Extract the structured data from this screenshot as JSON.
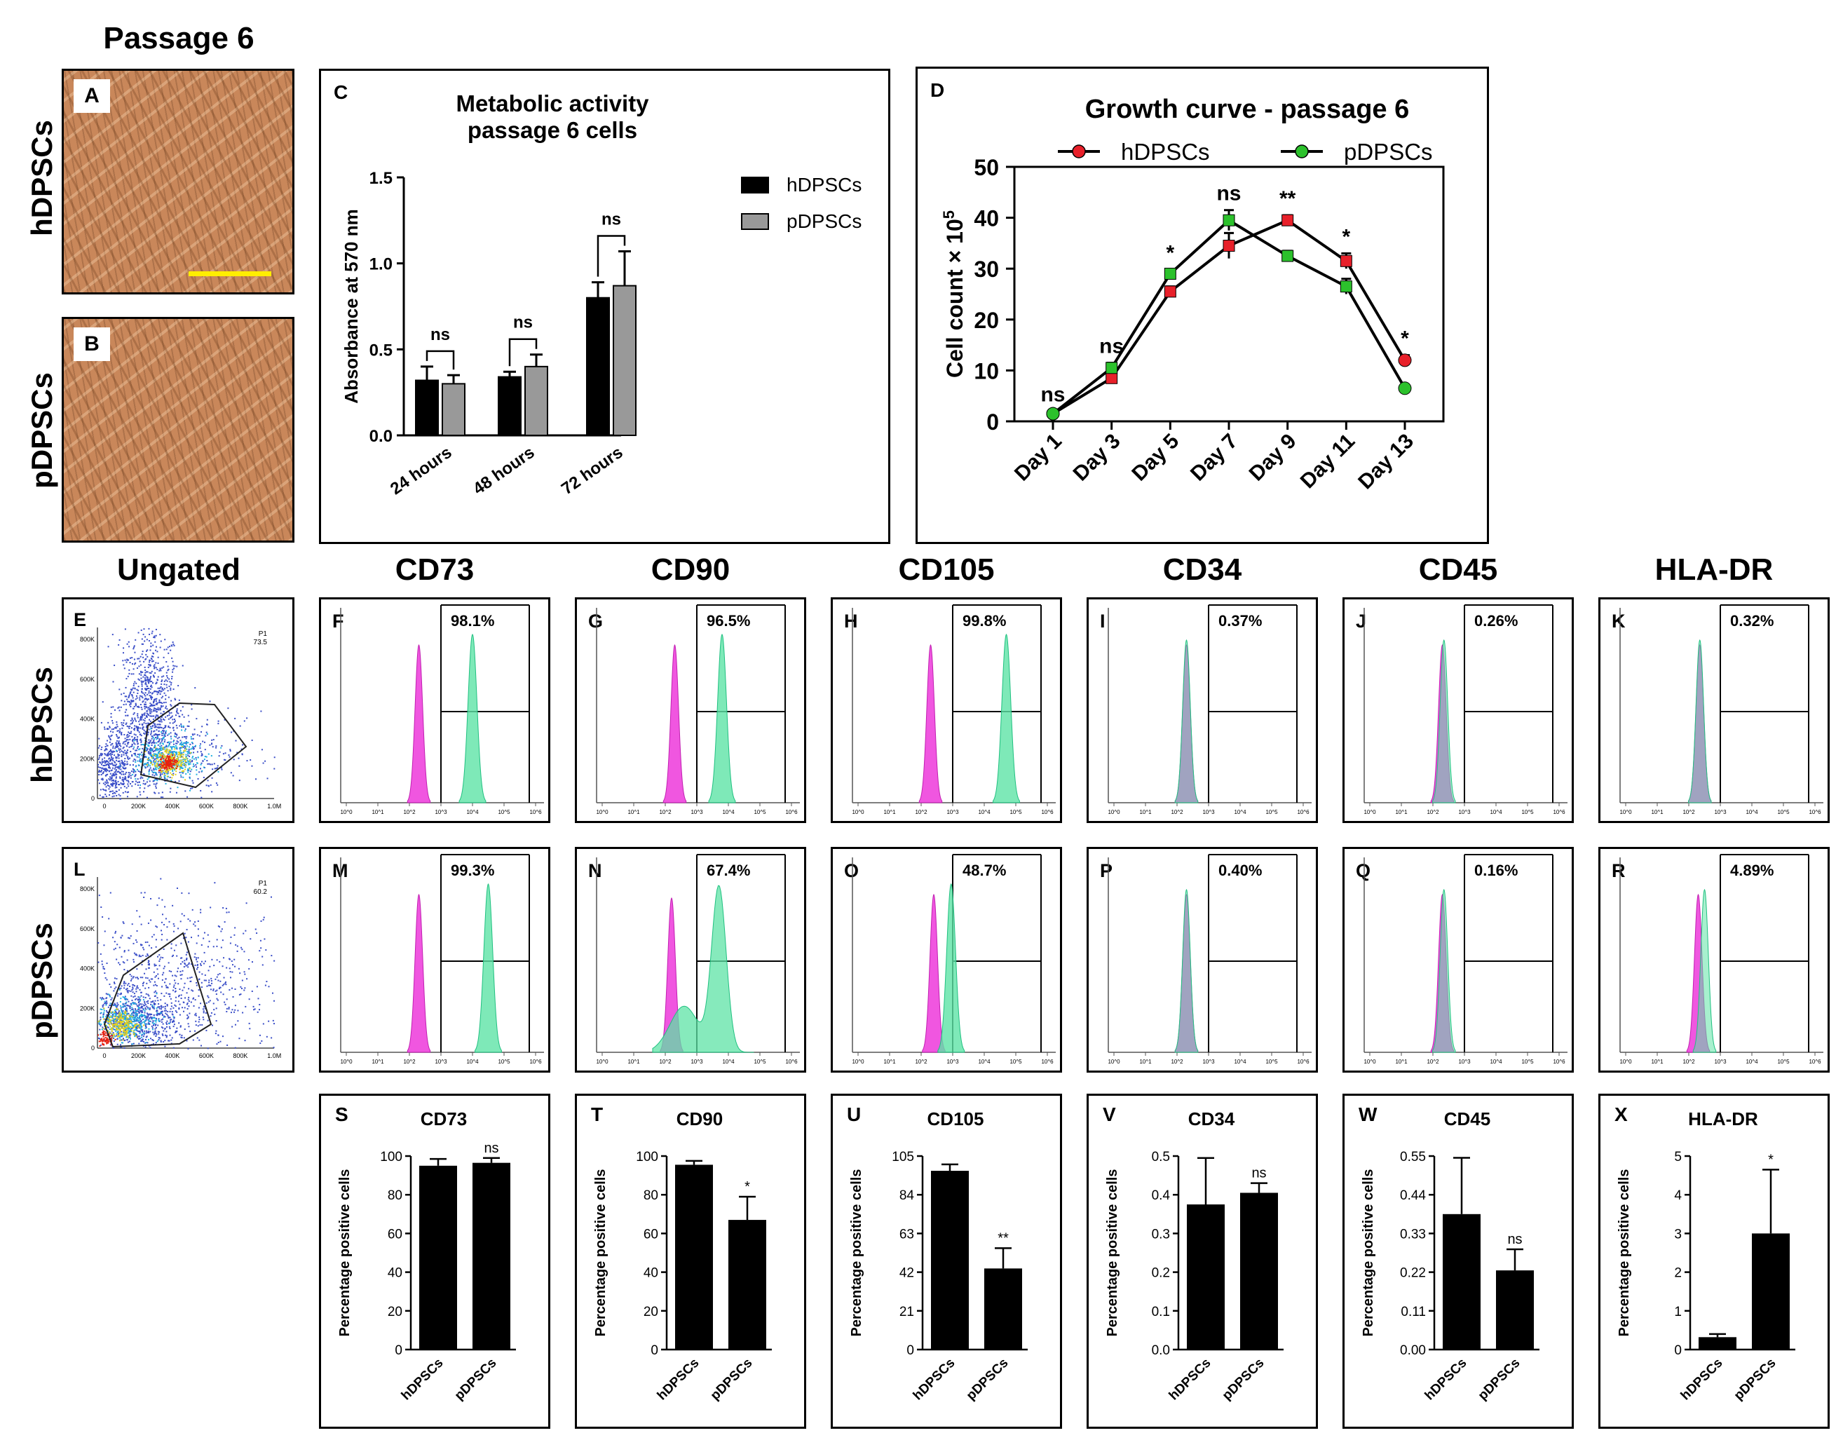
{
  "headers": {
    "passage": "Passage 6",
    "ungated": "Ungated",
    "markers": [
      "CD73",
      "CD90",
      "CD105",
      "CD34",
      "CD45",
      "HLA-DR"
    ]
  },
  "row_labels": {
    "h": "hDPSCs",
    "p": "pDPSCs"
  },
  "micro_labels": [
    "A",
    "B"
  ],
  "colors": {
    "hDPSCs": "#000000",
    "pDPSCs": "#999999",
    "red": "#e8202a",
    "green": "#2cc12c",
    "isotype": "#ee44dd",
    "stain": "#5ee3a6"
  },
  "chart_data": [
    {
      "panel": "C",
      "type": "bar",
      "title": "Metabolic activity passage 6 cells",
      "title_lines": [
        "Metabolic activity",
        "passage 6 cells"
      ],
      "ylabel": "Absorbance at 570 nm",
      "ylim": [
        0,
        1.5
      ],
      "yticks": [
        "0.0",
        "0.5",
        "1.0",
        "1.5"
      ],
      "categories": [
        "24 hours",
        "48 hours",
        "72 hours"
      ],
      "series": [
        {
          "name": "hDPSCs",
          "values": [
            0.32,
            0.34,
            0.8
          ],
          "errors": [
            0.08,
            0.03,
            0.09
          ]
        },
        {
          "name": "pDPSCs",
          "values": [
            0.3,
            0.4,
            0.87
          ],
          "errors": [
            0.05,
            0.07,
            0.2
          ]
        }
      ],
      "significance": [
        "ns",
        "ns",
        "ns"
      ]
    },
    {
      "panel": "D",
      "type": "line",
      "title": "Growth curve - passage 6",
      "ylabel": "Cell count × 10",
      "ylabel_sup": "5",
      "ylim": [
        0,
        50
      ],
      "yticks": [
        "0",
        "10",
        "20",
        "30",
        "40",
        "50"
      ],
      "categories": [
        "Day 1",
        "Day 3",
        "Day 5",
        "Day 7",
        "Day 9",
        "Day 11",
        "Day 13"
      ],
      "series": [
        {
          "name": "hDPSCs",
          "values": [
            1.5,
            8.5,
            25.5,
            34.5,
            39.5,
            31.5,
            12
          ],
          "errors": [
            0.5,
            1,
            1,
            2.5,
            1,
            1.5,
            1
          ]
        },
        {
          "name": "pDPSCs",
          "values": [
            1.5,
            10.5,
            29,
            39.5,
            32.5,
            26.5,
            6.5
          ],
          "errors": [
            0.5,
            1,
            0.8,
            2,
            1,
            1.5,
            0.5
          ]
        }
      ],
      "significance": [
        "ns",
        "ns",
        "*",
        "ns",
        "**",
        "*",
        "*"
      ]
    },
    {
      "panel": "E",
      "type": "scatter",
      "description": "flow cytometry FSC/SSC density plot (hDPSCs)",
      "gate_label": "P1",
      "gate_value": "73.5",
      "yticks": [
        "0",
        "200K",
        "400K",
        "600K",
        "800K"
      ],
      "xticks": [
        "0",
        "200K",
        "400K",
        "600K",
        "800K",
        "1.0M"
      ]
    },
    {
      "panel": "L",
      "type": "scatter",
      "description": "flow cytometry FSC/SSC density plot (pDPSCs)",
      "gate_label": "P1",
      "gate_value": "60.2",
      "yticks": [
        "0",
        "200K",
        "400K",
        "600K",
        "800K"
      ],
      "xticks": [
        "0",
        "200K",
        "400K",
        "600K",
        "800K",
        "1.0M"
      ]
    },
    {
      "type": "histogram",
      "description": "flow cytometry histograms, isotype (magenta) vs stained (green)",
      "xticks": [
        "10^0",
        "10^1",
        "10^2",
        "10^3",
        "10^4",
        "10^5",
        "10^6"
      ],
      "panels": [
        {
          "panel": "F",
          "marker": "CD73",
          "pct": "98.1%",
          "iso_peak": 2.3,
          "stain_peak": 4.0,
          "bimodal": false
        },
        {
          "panel": "G",
          "marker": "CD90",
          "pct": "96.5%",
          "iso_peak": 2.3,
          "stain_peak": 3.8,
          "bimodal": false
        },
        {
          "panel": "H",
          "marker": "CD105",
          "pct": "99.8%",
          "iso_peak": 2.3,
          "stain_peak": 4.7,
          "bimodal": false
        },
        {
          "panel": "I",
          "marker": "CD34",
          "pct": "0.37%",
          "iso_peak": 2.3,
          "stain_peak": 2.3,
          "bimodal": false
        },
        {
          "panel": "J",
          "marker": "CD45",
          "pct": "0.26%",
          "iso_peak": 2.3,
          "stain_peak": 2.35,
          "bimodal": false
        },
        {
          "panel": "K",
          "marker": "HLA-DR",
          "pct": "0.32%",
          "iso_peak": 2.35,
          "stain_peak": 2.35,
          "bimodal": false
        },
        {
          "panel": "M",
          "marker": "CD73",
          "pct": "99.3%",
          "iso_peak": 2.3,
          "stain_peak": 4.5,
          "bimodal": false
        },
        {
          "panel": "N",
          "marker": "CD90",
          "pct": "67.4%",
          "iso_peak": 2.2,
          "stain_peak": 3.7,
          "bimodal": true
        },
        {
          "panel": "O",
          "marker": "CD105",
          "pct": "48.7%",
          "iso_peak": 2.4,
          "stain_peak": 2.95,
          "bimodal": false
        },
        {
          "panel": "P",
          "marker": "CD34",
          "pct": "0.40%",
          "iso_peak": 2.3,
          "stain_peak": 2.3,
          "bimodal": false
        },
        {
          "panel": "Q",
          "marker": "CD45",
          "pct": "0.16%",
          "iso_peak": 2.3,
          "stain_peak": 2.35,
          "bimodal": false
        },
        {
          "panel": "R",
          "marker": "HLA-DR",
          "pct": "4.89%",
          "iso_peak": 2.3,
          "stain_peak": 2.5,
          "bimodal": false
        }
      ]
    },
    {
      "type": "bar",
      "description": "percentage positive cells",
      "ylabel": "Percentage positive cells",
      "categories": [
        "hDPSCs",
        "pDPSCs"
      ],
      "panels": [
        {
          "panel": "S",
          "title": "CD73",
          "ylim": [
            0,
            100
          ],
          "yticks": [
            "0",
            "20",
            "40",
            "60",
            "80",
            "100"
          ],
          "values": [
            95,
            96.5
          ],
          "errors": [
            3.5,
            2.5
          ],
          "sig": "ns"
        },
        {
          "panel": "T",
          "title": "CD90",
          "ylim": [
            0,
            100
          ],
          "yticks": [
            "0",
            "20",
            "40",
            "60",
            "80",
            "100"
          ],
          "values": [
            95.5,
            67
          ],
          "errors": [
            2,
            12
          ],
          "sig": "*"
        },
        {
          "panel": "U",
          "title": "CD105",
          "ylim": [
            0,
            105
          ],
          "yticks": [
            "0",
            "21",
            "42",
            "63",
            "84",
            "105"
          ],
          "values": [
            97,
            44
          ],
          "errors": [
            3.5,
            11
          ],
          "sig": "**"
        },
        {
          "panel": "V",
          "title": "CD34",
          "ylim": [
            0,
            0.5
          ],
          "yticks": [
            "0.0",
            "0.1",
            "0.2",
            "0.3",
            "0.4",
            "0.5"
          ],
          "values": [
            0.375,
            0.405
          ],
          "errors": [
            0.12,
            0.025
          ],
          "sig": "ns"
        },
        {
          "panel": "W",
          "title": "CD45",
          "ylim": [
            0,
            0.55
          ],
          "yticks": [
            "0.00",
            "0.11",
            "0.22",
            "0.33",
            "0.44",
            "0.55"
          ],
          "values": [
            0.385,
            0.225
          ],
          "errors": [
            0.16,
            0.06
          ],
          "sig": "ns"
        },
        {
          "panel": "X",
          "title": "HLA-DR",
          "ylim": [
            0,
            5
          ],
          "yticks": [
            "0",
            "1",
            "2",
            "3",
            "4",
            "5"
          ],
          "values": [
            0.32,
            3.0
          ],
          "errors": [
            0.08,
            1.65
          ],
          "sig": "*"
        }
      ]
    }
  ]
}
